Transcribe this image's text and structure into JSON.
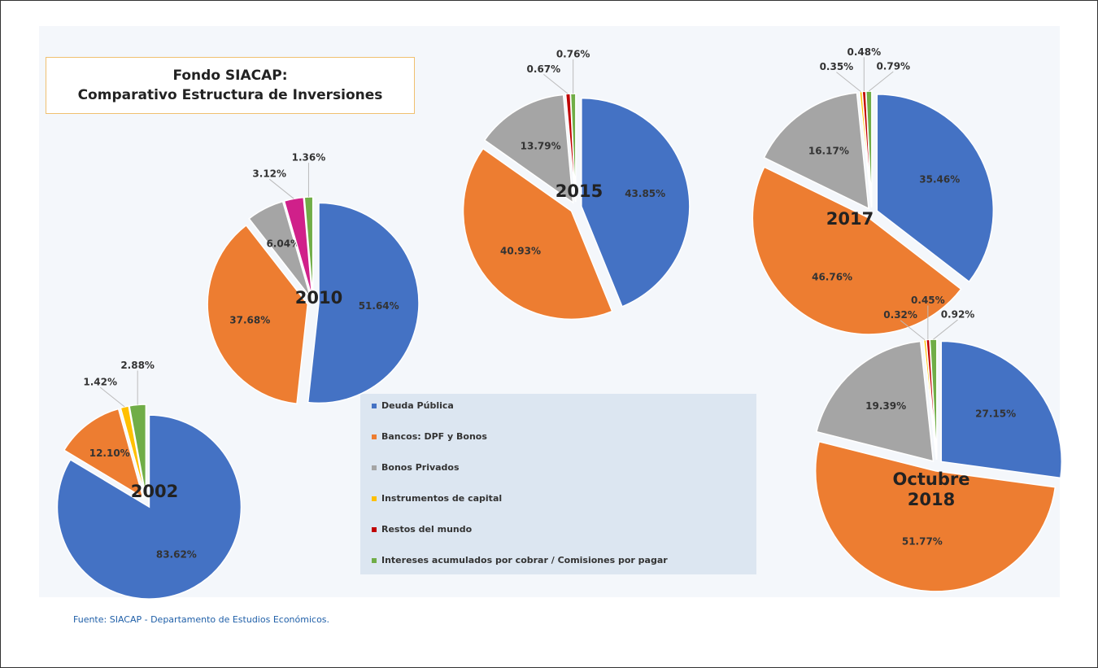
{
  "title_lines": [
    "Fondo SIACAP:",
    "Comparativo Estructura de Inversiones"
  ],
  "legend": {
    "labels": [
      "Deuda Pública",
      "Bancos: DPF y Bonos",
      "Bonos Privados",
      "Instrumentos de capital",
      "Restos del mundo",
      "Intereses acumulados por cobrar / Comisiones por pagar"
    ],
    "colors": [
      "#4472c4",
      "#ed7d31",
      "#a5a5a5",
      "#ffc000",
      "#c00000",
      "#70ad47"
    ]
  },
  "source": "Fuente: SIACAP - Departamento de Estudios Económicos.",
  "chart_data": [
    {
      "type": "pie",
      "title": "2002",
      "values": [
        83.62,
        12.1,
        null,
        1.42,
        null,
        2.88
      ],
      "value_labels": [
        "83.62%",
        "12.10%",
        null,
        "1.42%",
        null,
        "2.88%"
      ],
      "colors": [
        "#4472c4",
        "#ed7d31",
        "#a5a5a5",
        "#ffc000",
        "#c00000",
        "#70ad47"
      ]
    },
    {
      "type": "pie",
      "title": "2010",
      "values": [
        51.64,
        37.68,
        6.04,
        null,
        3.12,
        1.36
      ],
      "value_labels": [
        "51.64%",
        "37.68%",
        "6.04%",
        null,
        "3.12%",
        "1.36%"
      ],
      "colors": [
        "#4472c4",
        "#ed7d31",
        "#a5a5a5",
        "#ffc000",
        "#d0208a",
        "#70ad47"
      ]
    },
    {
      "type": "pie",
      "title": "2015",
      "values": [
        43.85,
        40.93,
        13.79,
        null,
        0.67,
        0.76
      ],
      "value_labels": [
        "43.85%",
        "40.93%",
        "13.79%",
        null,
        "0.67%",
        "0.76%"
      ],
      "colors": [
        "#4472c4",
        "#ed7d31",
        "#a5a5a5",
        "#ffc000",
        "#c00000",
        "#70ad47"
      ]
    },
    {
      "type": "pie",
      "title": "2017",
      "values": [
        35.46,
        46.76,
        16.17,
        0.35,
        0.48,
        0.79
      ],
      "value_labels": [
        "35.46%",
        "46.76%",
        "16.17%",
        "0.35%",
        "0.48%",
        "0.79%"
      ],
      "colors": [
        "#4472c4",
        "#ed7d31",
        "#a5a5a5",
        "#ffc000",
        "#c00000",
        "#70ad47"
      ]
    },
    {
      "type": "pie",
      "title": "Octubre 2018",
      "values": [
        27.15,
        51.77,
        19.39,
        0.32,
        0.45,
        0.92
      ],
      "value_labels": [
        "27.15%",
        "51.77%",
        "19.39%",
        "0.32%",
        "0.45%",
        "0.92%"
      ],
      "colors": [
        "#4472c4",
        "#ed7d31",
        "#a5a5a5",
        "#ffc000",
        "#c00000",
        "#70ad47"
      ]
    }
  ]
}
